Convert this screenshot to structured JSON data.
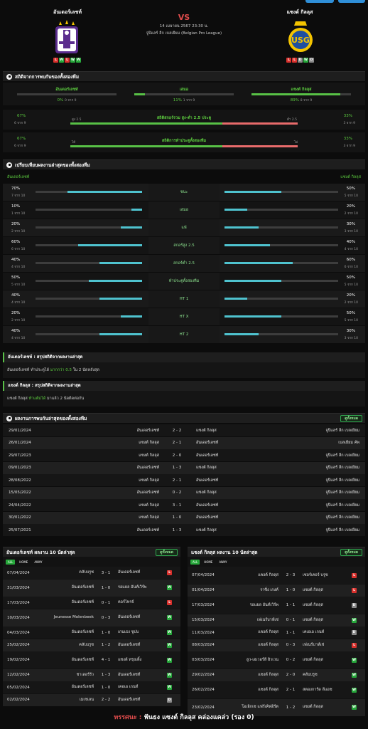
{
  "match": {
    "home_name": "อันเดอร์เลชท์",
    "away_name": "แซงต์ กิลลุส",
    "vs": "VS",
    "datetime": "14 เมษายน 2567 23:30 น.",
    "league": "จูปิแลร์ ลีก เบลเยียม (Belgian Pro League)",
    "home_form": [
      "L",
      "W",
      "L",
      "W",
      "W"
    ],
    "away_form": [
      "L",
      "L",
      "D",
      "W",
      "D"
    ],
    "home_colors": {
      "primary": "#5b2d8e",
      "accent": "#ffffff"
    },
    "away_colors": {
      "primary": "#f5c400",
      "accent": "#1f4fa0"
    }
  },
  "h2h_stats": {
    "title": "สถิติจากการพบกันของทั้งสองทีม",
    "home_label": "อันเดอร์เลชท์",
    "draw_label": "เสมอ",
    "away_label": "แซงต์ กิลลุส",
    "home_pct": "0%",
    "home_sub": "0 จาก 9",
    "home_fill": 0,
    "draw_pct": "11%",
    "draw_sub": "1 จาก 9",
    "draw_fill": 0.11,
    "away_pct": "89%",
    "away_sub": "8 จาก 9",
    "away_fill": 0.89,
    "ou": {
      "left_pct": "67%",
      "left_sub": "6 จาก 9",
      "left_label": "สูง 2.5",
      "title": "สถิติสกอร์รวม สูง-ต่ำ 2.5 ประตู",
      "right_label": "ต่ำ 2.5",
      "right_pct": "33%",
      "right_sub": "3 จาก 9",
      "green_fill": 0.67
    },
    "btts": {
      "left_pct": "67%",
      "left_sub": "6 จาก 9",
      "left_label": "ได้",
      "title": "สถิติการทำประตูทั้งสองทีม",
      "right_label": "ไม่",
      "right_pct": "33%",
      "right_sub": "3 จาก 9",
      "green_fill": 0.67
    }
  },
  "form_compare": {
    "title": "เปรียบเทียบผลงานล่าสุดของทั้งสองทีม",
    "home_label": "อันเดอร์เลชท์",
    "away_label": "แซงต์ กิลลุส",
    "rows": [
      {
        "label": "ชนะ",
        "lp": "70%",
        "ls": "7 จาก 10",
        "lf": 0.7,
        "rp": "50%",
        "rs": "5 จาก 10",
        "rf": 0.5
      },
      {
        "label": "เสมอ",
        "lp": "10%",
        "ls": "1 จาก 10",
        "lf": 0.1,
        "rp": "20%",
        "rs": "2 จาก 10",
        "rf": 0.2
      },
      {
        "label": "แพ้",
        "lp": "20%",
        "ls": "2 จาก 10",
        "lf": 0.2,
        "rp": "30%",
        "rs": "3 จาก 10",
        "rf": 0.3
      },
      {
        "label": "สกอร์สูง 2.5",
        "lp": "60%",
        "ls": "6 จาก 10",
        "lf": 0.6,
        "rp": "40%",
        "rs": "4 จาก 10",
        "rf": 0.4
      },
      {
        "label": "สกอร์ต่ำ 2.5",
        "lp": "40%",
        "ls": "4 จาก 10",
        "lf": 0.4,
        "rp": "60%",
        "rs": "6 จาก 10",
        "rf": 0.6
      },
      {
        "label": "ทำประตูทั้งสองทีม",
        "lp": "50%",
        "ls": "5 จาก 10",
        "lf": 0.5,
        "rp": "50%",
        "rs": "5 จาก 10",
        "rf": 0.5
      },
      {
        "label": "HT 1",
        "lp": "40%",
        "ls": "4 จาก 10",
        "lf": 0.4,
        "rp": "20%",
        "rs": "2 จาก 10",
        "rf": 0.2
      },
      {
        "label": "HT X",
        "lp": "20%",
        "ls": "2 จาก 10",
        "lf": 0.2,
        "rp": "50%",
        "rs": "5 จาก 10",
        "rf": 0.5
      },
      {
        "label": "HT 2",
        "lp": "40%",
        "ls": "4 จาก 10",
        "lf": 0.4,
        "rp": "30%",
        "rs": "3 จาก 10",
        "rf": 0.3
      }
    ]
  },
  "summary_home": {
    "title": "อันเดอร์เลชท์ : สรุปสถิติจากผลงานล่าสุด",
    "t1": "อันเดอร์เลชท์ ทำประตูได้",
    "t2": "มากกว่า 0.5",
    "t3": "ใน 2 นัดหลังสุด"
  },
  "summary_away": {
    "title": "แซงต์ กิลลุส : สรุปสถิติจากผลงานล่าสุด",
    "t1": "แซงต์ กิลลุส",
    "t2": "ทำแต้มได้",
    "t3": "มาแล้ว 2 นัดติดต่อกัน"
  },
  "h2h_results": {
    "title": "ผลงานการพบกันล่าสุดของทั้งสองทีม",
    "button": "ดูทั้งหมด",
    "rows": [
      [
        "29/01/2024",
        "อันเดอร์เลชท์",
        "2 - 2",
        "แซงต์ กิลลุส",
        "จูปิแลร์ ลีก เบลเยียม"
      ],
      [
        "26/01/2024",
        "แซงต์ กิลลุส",
        "2 - 1",
        "อันเดอร์เลชท์",
        "เบลเยียม คัพ"
      ],
      [
        "29/07/2023",
        "แซงต์ กิลลุส",
        "2 - 0",
        "อันเดอร์เลชท์",
        "จูปิแลร์ ลีก เบลเยียม"
      ],
      [
        "09/01/2023",
        "อันเดอร์เลชท์",
        "1 - 3",
        "แซงต์ กิลลุส",
        "จูปิแลร์ ลีก เบลเยียม"
      ],
      [
        "28/08/2022",
        "แซงต์ กิลลุส",
        "2 - 1",
        "อันเดอร์เลชท์",
        "จูปิแลร์ ลีก เบลเยียม"
      ],
      [
        "15/05/2022",
        "อันเดอร์เลชท์",
        "0 - 2",
        "แซงต์ กิลลุส",
        "จูปิแลร์ ลีก เบลเยียม"
      ],
      [
        "24/04/2022",
        "แซงต์ กิลลุส",
        "3 - 1",
        "อันเดอร์เลชท์",
        "จูปิแลร์ ลีก เบลเยียม"
      ],
      [
        "30/01/2022",
        "แซงต์ กิลลุส",
        "1 - 0",
        "อันเดอร์เลชท์",
        "จูปิแลร์ ลีก เบลเยียม"
      ],
      [
        "25/07/2021",
        "อันเดอร์เลชท์",
        "1 - 3",
        "แซงต์ กิลลุส",
        "จูปิแลร์ ลีก เบลเยียม"
      ]
    ]
  },
  "last10_home": {
    "title": "อันเดอร์เลชท์ ผลงาน 10 นัดล่าสุด",
    "button": "ดูทั้งหมด",
    "tabs": [
      "ALL",
      "HOME",
      "AWAY"
    ],
    "rows": [
      [
        "07/04/2024",
        "คลับบรูซ",
        "3 - 1",
        "อันเดอร์เลชท์",
        "L"
      ],
      [
        "31/03/2024",
        "อันเดอร์เลชท์",
        "1 - 0",
        "รอแยล อันท์เวิร์พ",
        "W"
      ],
      [
        "17/03/2024",
        "อันเดอร์เลชท์",
        "0 - 1",
        "คอร์ไทรจ์",
        "L"
      ],
      [
        "10/03/2024",
        "Jeunesse Molenbeek",
        "0 - 3",
        "อันเดอร์เลชท์",
        "W"
      ],
      [
        "04/03/2024",
        "อันเดอร์เลชท์",
        "1 - 0",
        "เกนเธง ชูปบ",
        "W"
      ],
      [
        "25/02/2024",
        "คลับบรูซ",
        "1 - 2",
        "อันเดอร์เลชท์",
        "W"
      ],
      [
        "19/02/2024",
        "อันเดอร์เลชท์",
        "4 - 1",
        "แซงต์ ทรุยเดิ้ง",
        "W"
      ],
      [
        "12/02/2024",
        "ชาเลอร์รัว",
        "1 - 3",
        "อันเดอร์เลชท์",
        "W"
      ],
      [
        "05/02/2024",
        "อันเดอร์เลชท์",
        "1 - 0",
        "เคอเอ เกนท์",
        "W"
      ],
      [
        "02/02/2024",
        "เมเชเลน",
        "2 - 2",
        "อันเดอร์เลชท์",
        "D"
      ]
    ]
  },
  "last10_away": {
    "title": "แซงต์ กิลลุส ผลงาน 10 นัดล่าสุด",
    "button": "ดูทั้งหมด",
    "tabs": [
      "ALL",
      "HOME",
      "AWAY"
    ],
    "rows": [
      [
        "07/04/2024",
        "แซงต์ กิลลุส",
        "2 - 3",
        "เซอร์เคอร์ บรูซ",
        "L"
      ],
      [
        "01/04/2024",
        "ราซิ่ง เกงค์",
        "1 - 0",
        "แซงต์ กิลลุส",
        "L"
      ],
      [
        "17/03/2024",
        "รอแยล อันท์เวิร์พ",
        "1 - 1",
        "แซงต์ กิลลุส",
        "D"
      ],
      [
        "15/03/2024",
        "เฟเนร์บาห์เช่",
        "0 - 1",
        "แซงต์ กิลลุส",
        "W"
      ],
      [
        "11/03/2024",
        "แซงต์ กิลลุส",
        "1 - 1",
        "เคเอเอ เกนท์",
        "D"
      ],
      [
        "08/03/2024",
        "แซงต์ กิลลุส",
        "0 - 3",
        "เฟเนร์บาห์เช่",
        "L"
      ],
      [
        "03/03/2024",
        "ลูว-เฮเวอร์ลี ฮิวเวน",
        "0 - 2",
        "แซงต์ กิลลุส",
        "W"
      ],
      [
        "29/02/2024",
        "แซงต์ กิลลุส",
        "2 - 0",
        "คลับบรูซ",
        "W"
      ],
      [
        "26/02/2024",
        "แซงต์ กิลลุส",
        "2 - 1",
        "สตองการ์ด ลีแอช",
        "W"
      ],
      [
        "23/02/2024",
        "โอเอิกเซ แฟร์เคิฟอิร์ต",
        "1 - 2",
        "แซงต์ กิลลุส",
        "W"
      ]
    ]
  },
  "footer": {
    "label": "ทรรศนะ :",
    "text": "ฟันธง แซงต์ กิลลุส คล่องแคล่ว (รอง 0)"
  }
}
